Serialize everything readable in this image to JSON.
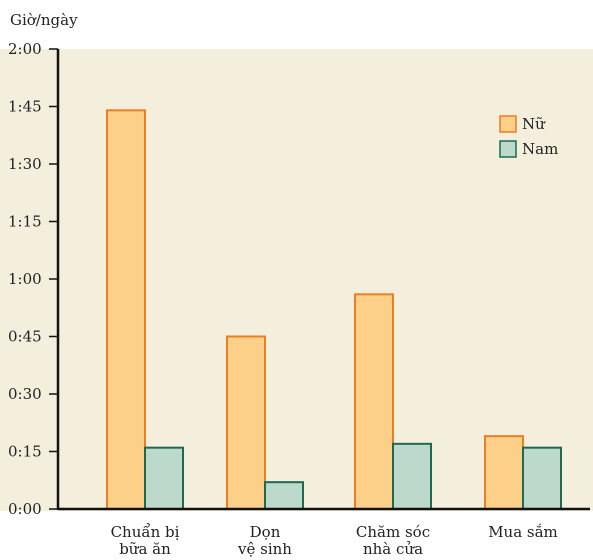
{
  "chart_data": {
    "type": "bar",
    "title": "",
    "ylabel": "Giờ/ngày",
    "xlabel": "",
    "categories": [
      [
        "Chuẩn bị",
        "bữa ăn"
      ],
      [
        "Dọn",
        "vệ sinh"
      ],
      [
        "Chăm sóc",
        "nhà cửa"
      ],
      [
        "Mua sắm"
      ]
    ],
    "series": [
      {
        "name": "Nữ",
        "color": "#fdd08a",
        "stroke": "#ea7e22",
        "values": [
          104,
          45,
          56,
          19
        ]
      },
      {
        "name": "Nam",
        "color": "#bdd9cb",
        "stroke": "#1e6a50",
        "values": [
          16,
          7,
          17,
          16
        ]
      }
    ],
    "yunit": "minutes",
    "ylim": [
      0,
      120
    ],
    "yticks": [
      0,
      15,
      30,
      45,
      60,
      75,
      90,
      105,
      120
    ],
    "ytick_labels": [
      "0:00",
      "0:15",
      "0:30",
      "0:45",
      "1:00",
      "1:15",
      "1:30",
      "1:45",
      "2:00"
    ],
    "grid": false,
    "legend_position": "top-right",
    "background": "#f4efdc"
  }
}
